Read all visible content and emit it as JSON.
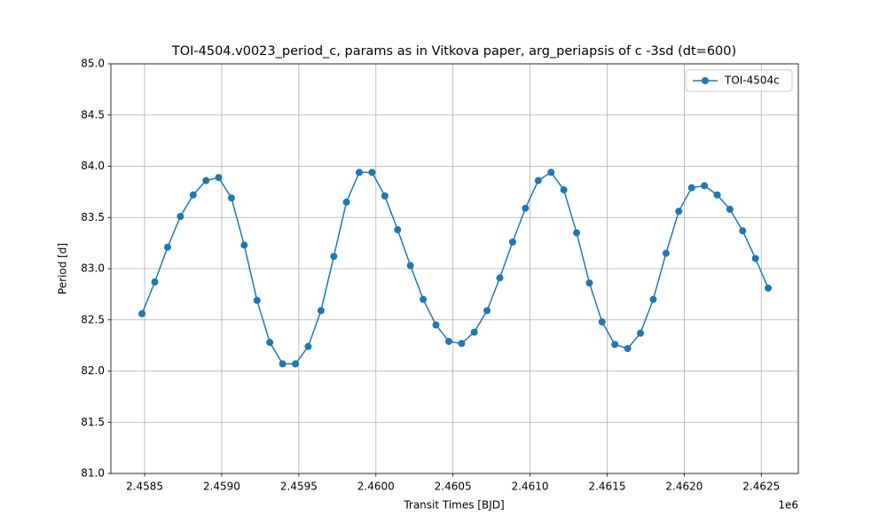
{
  "chart_data": {
    "type": "line",
    "title": "TOI-4504.v0023_period_c, params as in Vitkova paper, arg_periapsis of c -3sd (dt=600)",
    "x_label": "Transit Times [BJD]",
    "y_label": "Period [d]",
    "x_offset_label": "1e6",
    "x": [
      2458483,
      2458566,
      2458649,
      2458732,
      2458815,
      2458898,
      2458980,
      2459063,
      2459146,
      2459229,
      2459312,
      2459395,
      2459478,
      2459561,
      2459644,
      2459727,
      2459809,
      2459892,
      2459975,
      2460058,
      2460141,
      2460224,
      2460307,
      2460390,
      2460473,
      2460556,
      2460638,
      2460721,
      2460804,
      2460887,
      2460970,
      2461053,
      2461136,
      2461219,
      2461302,
      2461385,
      2461467,
      2461550,
      2461633,
      2461716,
      2461799,
      2461882,
      2461965,
      2462048,
      2462131,
      2462214,
      2462296,
      2462379,
      2462462,
      2462545
    ],
    "series": [
      {
        "name": "TOI-4504c",
        "color": "#1f77b4",
        "values": [
          82.56,
          82.87,
          83.21,
          83.51,
          83.72,
          83.86,
          83.89,
          83.69,
          83.23,
          82.69,
          82.28,
          82.07,
          82.07,
          82.24,
          82.59,
          83.12,
          83.65,
          83.94,
          83.94,
          83.71,
          83.38,
          83.03,
          82.7,
          82.45,
          82.29,
          82.27,
          82.38,
          82.59,
          82.91,
          83.26,
          83.59,
          83.86,
          83.94,
          83.77,
          83.35,
          82.86,
          82.48,
          82.26,
          82.22,
          82.37,
          82.7,
          83.15,
          83.56,
          83.79,
          83.81,
          83.72,
          83.58,
          83.37,
          83.1,
          82.81
        ]
      }
    ],
    "xlim": [
      2458281,
      2462740
    ],
    "xticks": [
      {
        "value": 2458500,
        "label": "2.4585"
      },
      {
        "value": 2459000,
        "label": "2.4590"
      },
      {
        "value": 2459500,
        "label": "2.4595"
      },
      {
        "value": 2460000,
        "label": "2.4600"
      },
      {
        "value": 2460500,
        "label": "2.4605"
      },
      {
        "value": 2461000,
        "label": "2.4610"
      },
      {
        "value": 2461500,
        "label": "2.4615"
      },
      {
        "value": 2462000,
        "label": "2.4620"
      },
      {
        "value": 2462500,
        "label": "2.4625"
      }
    ],
    "ylim": [
      81,
      85
    ],
    "yticks": [
      {
        "value": 81,
        "label": "81.0"
      },
      81.5,
      {
        "value": 82,
        "label": "82.0"
      },
      82.5,
      {
        "value": 83,
        "label": "83.0"
      },
      83.5,
      {
        "value": 84,
        "label": "84.0"
      },
      84.5,
      {
        "value": 85,
        "label": "85.0"
      }
    ],
    "grid": true,
    "legend": "upper-right"
  }
}
